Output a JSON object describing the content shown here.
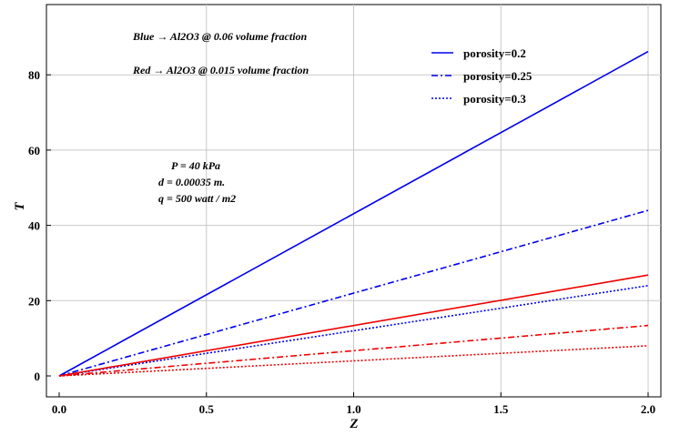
{
  "chart_data": {
    "type": "line",
    "title": "",
    "xlabel": "Z",
    "ylabel": "T",
    "xlim": [
      0,
      2.0
    ],
    "ylim": [
      0,
      90
    ],
    "xticks": [
      0.0,
      0.5,
      1.0,
      1.5,
      2.0
    ],
    "xtick_labels": [
      "0.0",
      "0.5",
      "1.0",
      "1.5",
      "2.0"
    ],
    "yticks": [
      0,
      20,
      40,
      60,
      80
    ],
    "ytick_labels": [
      "0",
      "20",
      "40",
      "60",
      "80"
    ],
    "grid": true,
    "legend_position": "top-right",
    "legend": [
      {
        "label": "porosity=0.2",
        "color": "#0000ee",
        "dash": "solid"
      },
      {
        "label": "porosity=0.25",
        "color": "#0000ee",
        "dash": "dashdot"
      },
      {
        "label": "porosity=0.3",
        "color": "#0000ee",
        "dash": "dotted"
      }
    ],
    "series": [
      {
        "color": "#0000ee",
        "dash": "solid",
        "x": [
          0,
          2.0
        ],
        "y": [
          0,
          86.2
        ]
      },
      {
        "color": "#0000ee",
        "dash": "dashdot",
        "x": [
          0,
          2.0
        ],
        "y": [
          0,
          44.0
        ]
      },
      {
        "color": "#0000ee",
        "dash": "dotted",
        "x": [
          0,
          2.0
        ],
        "y": [
          0,
          24.0
        ]
      },
      {
        "color": "#ee0000",
        "dash": "solid",
        "x": [
          0,
          2.0
        ],
        "y": [
          0,
          26.8
        ]
      },
      {
        "color": "#ee0000",
        "dash": "dashdot",
        "x": [
          0,
          2.0
        ],
        "y": [
          0,
          13.4
        ]
      },
      {
        "color": "#ee0000",
        "dash": "dotted",
        "x": [
          0,
          2.0
        ],
        "y": [
          0,
          8.0
        ]
      }
    ],
    "annotations": [
      "Blue → Al2O3 @ 0.06 volume fraction",
      "Red → Al2O3 @ 0.015 volume fraction",
      "P = 40 kPa",
      "d = 0.00035 m.",
      "q = 500 watt / m2"
    ]
  }
}
